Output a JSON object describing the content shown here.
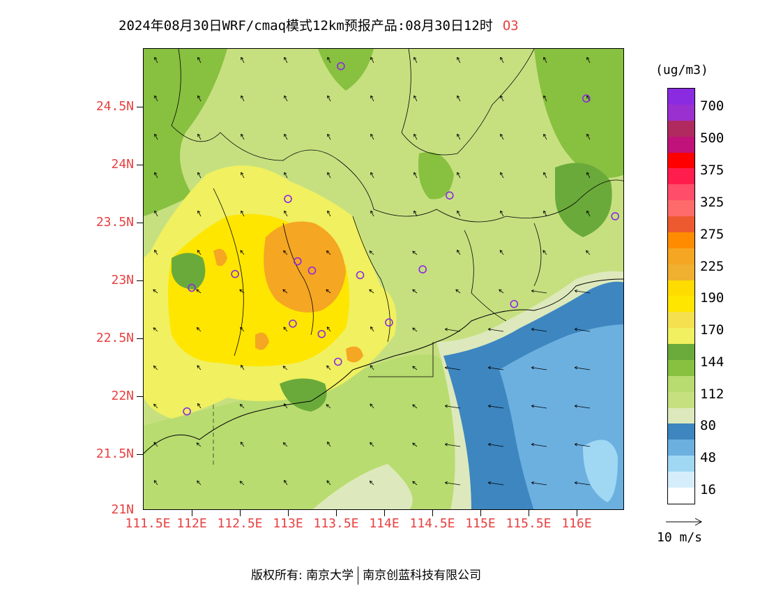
{
  "title": {
    "text": "2024年08月30日WRF/cmaq模式12km预报产品:08月30日12时",
    "species": "O3"
  },
  "axes": {
    "y_labels": [
      "24.5N",
      "24N",
      "23.5N",
      "23N",
      "22.5N",
      "22N",
      "21.5N",
      "21N"
    ],
    "x_labels": [
      "111.5E",
      "112E",
      "112.5E",
      "113E",
      "113.5E",
      "114E",
      "114.5E",
      "115E",
      "115.5E",
      "116E"
    ]
  },
  "legend": {
    "unit": "(ug/m3)",
    "levels": [
      "700",
      "500",
      "375",
      "325",
      "275",
      "225",
      "190",
      "170",
      "144",
      "112",
      "80",
      "48",
      "16"
    ],
    "colors": [
      "#8a2be2",
      "#9b30d0",
      "#b02a60",
      "#c0127a",
      "#ff0000",
      "#ff1d4d",
      "#ff4d6a",
      "#ff6b6b",
      "#ee5a30",
      "#ff8c00",
      "#f5a623",
      "#f0b030",
      "#ffdc00",
      "#ffe600",
      "#f5e050",
      "#f0f060",
      "#6aaa3a",
      "#88c040",
      "#b8dc70",
      "#c6e080",
      "#dde9bc",
      "#3d86c0",
      "#6cb0e0",
      "#a0d8f4",
      "#d6eefc",
      "#ffffff"
    ]
  },
  "wind_reference": {
    "label": "10 m/s"
  },
  "credit": {
    "left": "版权所有: 南京大学",
    "right": "南京创蓝科技有限公司"
  },
  "stations": [
    {
      "name": "station",
      "lon": 113.55,
      "lat": 24.85
    },
    {
      "name": "station",
      "lon": 116.1,
      "lat": 24.57
    },
    {
      "name": "station",
      "lon": 113.0,
      "lat": 23.7
    },
    {
      "name": "station",
      "lon": 114.68,
      "lat": 23.73
    },
    {
      "name": "station",
      "lon": 116.4,
      "lat": 23.55
    },
    {
      "name": "station",
      "lon": 112.45,
      "lat": 23.05
    },
    {
      "name": "station",
      "lon": 113.1,
      "lat": 23.16
    },
    {
      "name": "station",
      "lon": 113.25,
      "lat": 23.08
    },
    {
      "name": "station",
      "lon": 112.0,
      "lat": 22.93
    },
    {
      "name": "station",
      "lon": 113.75,
      "lat": 23.04
    },
    {
      "name": "station",
      "lon": 114.4,
      "lat": 23.09
    },
    {
      "name": "station",
      "lon": 115.35,
      "lat": 22.79
    },
    {
      "name": "station",
      "lon": 113.05,
      "lat": 22.62
    },
    {
      "name": "station",
      "lon": 113.35,
      "lat": 22.53
    },
    {
      "name": "station",
      "lon": 114.05,
      "lat": 22.63
    },
    {
      "name": "station",
      "lon": 113.52,
      "lat": 22.29
    },
    {
      "name": "station",
      "lon": 111.95,
      "lat": 21.86
    }
  ]
}
